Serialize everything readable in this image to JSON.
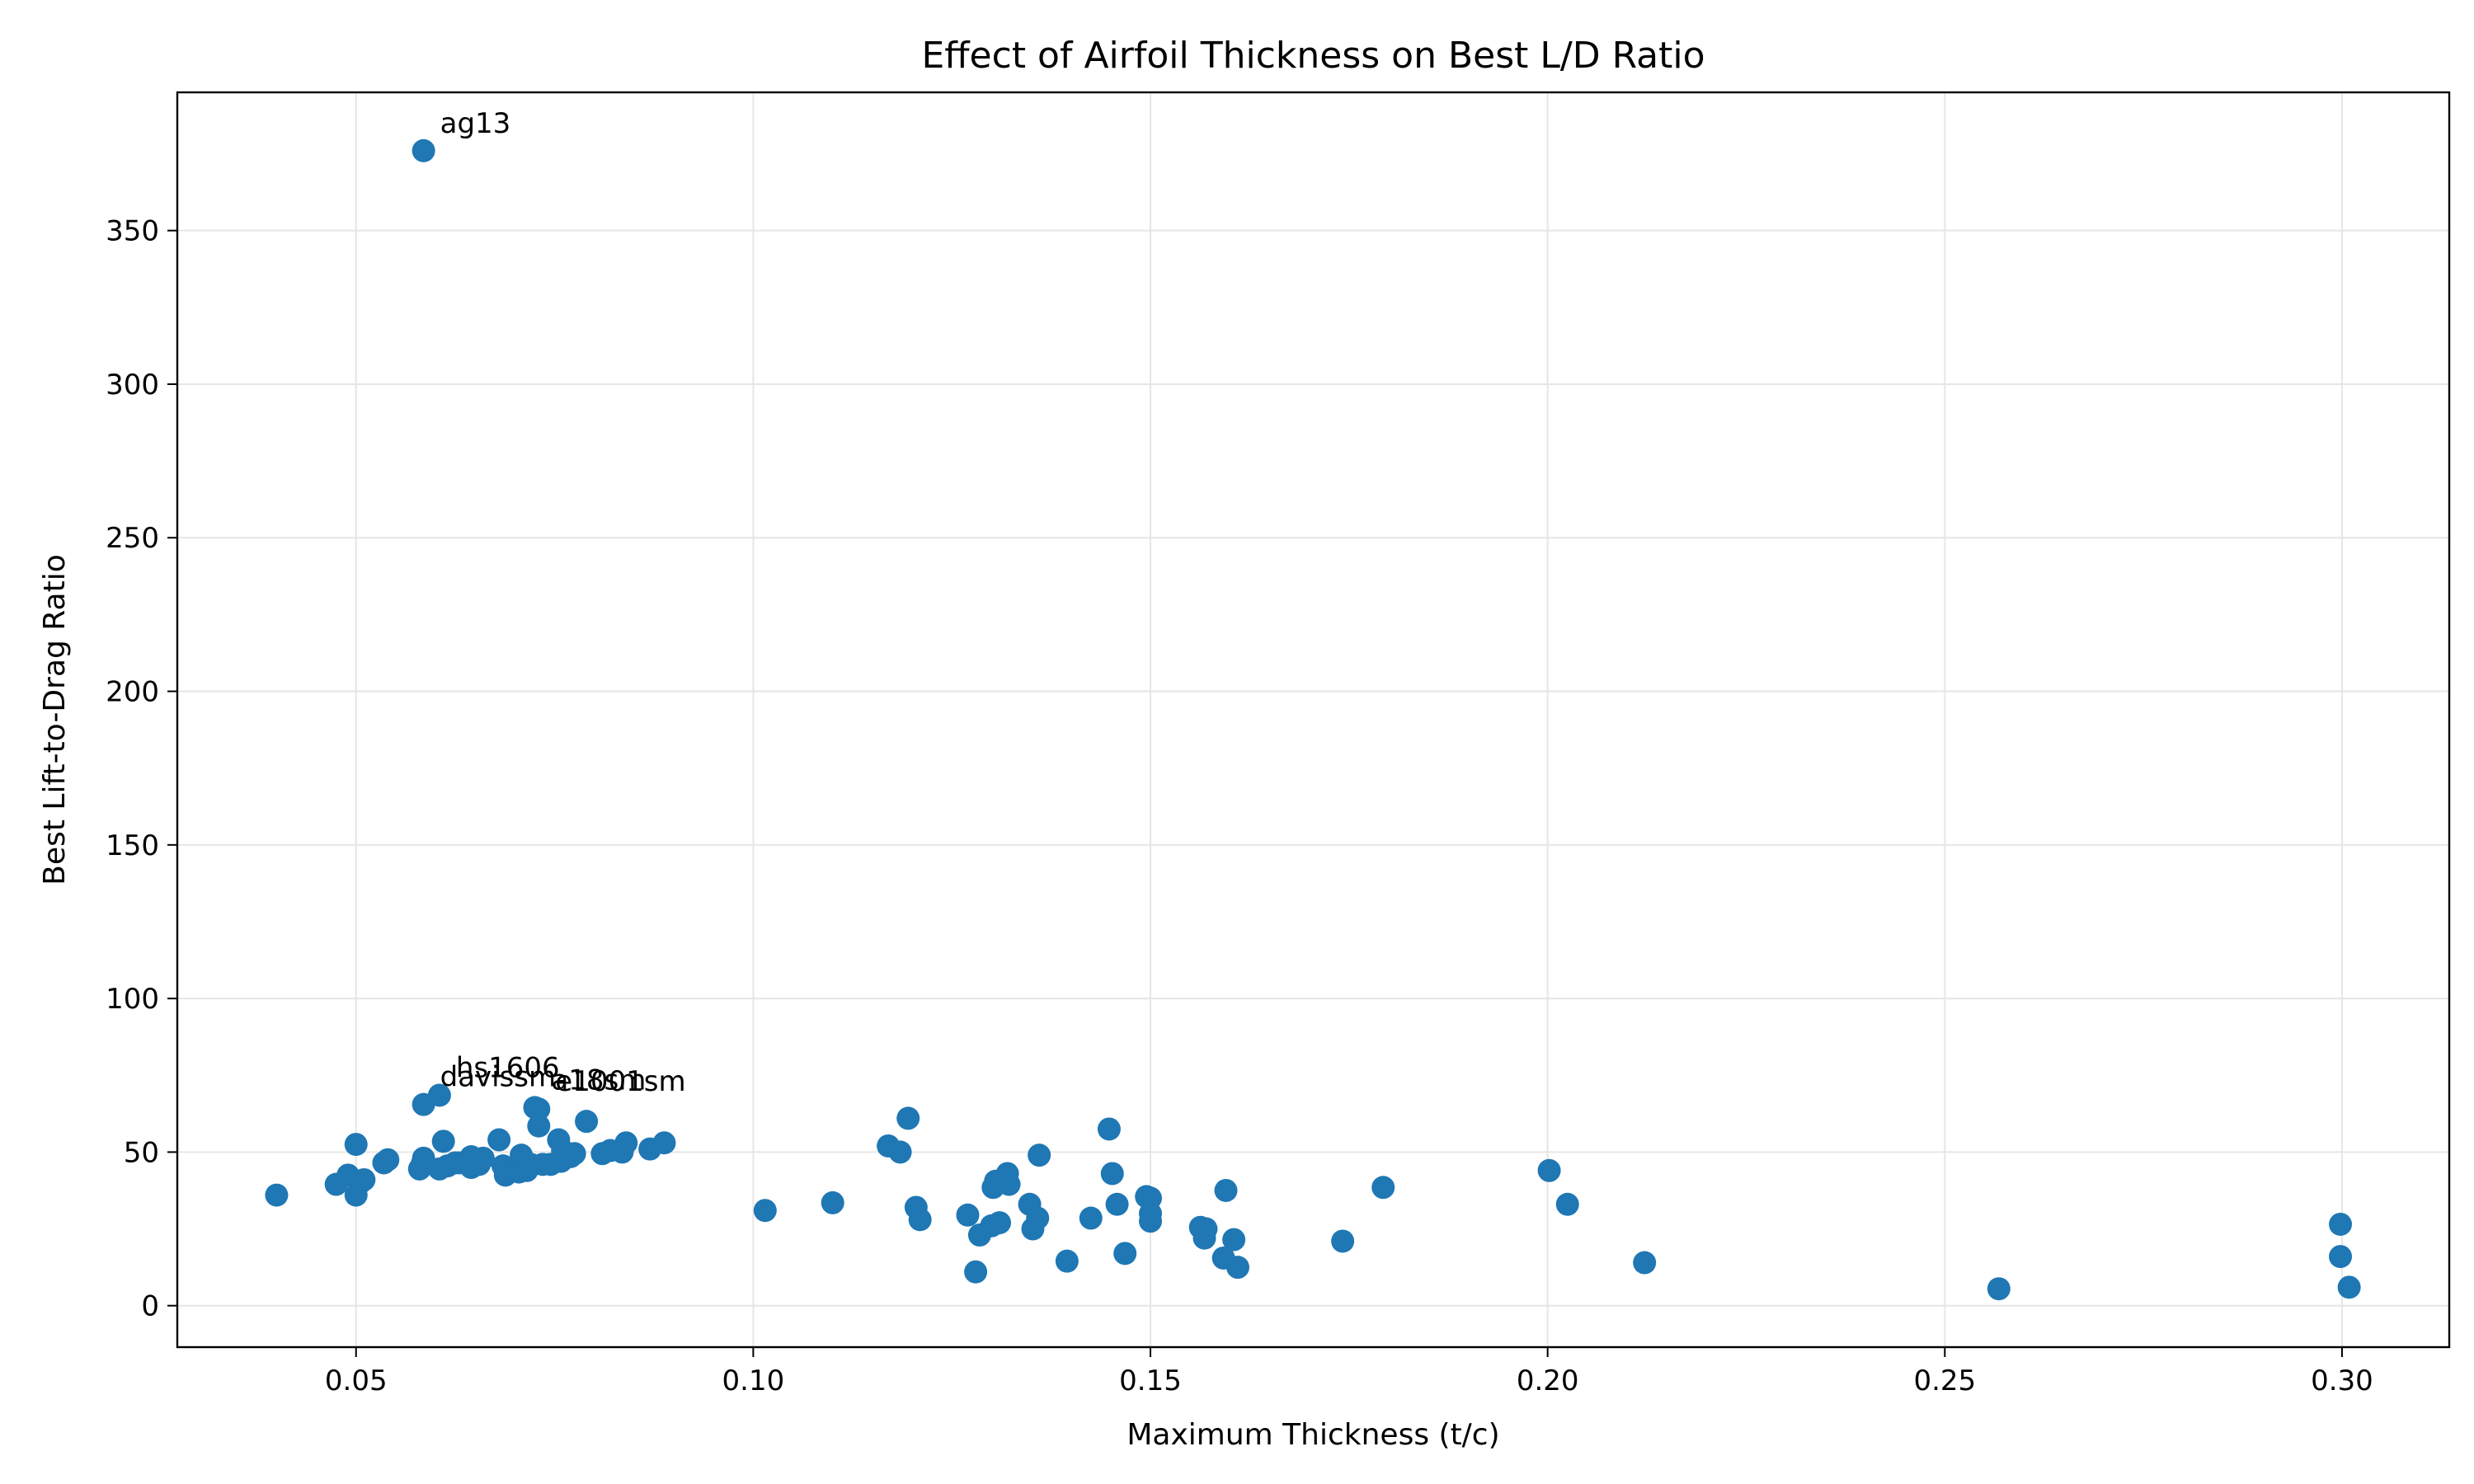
{
  "chart_data": {
    "type": "scatter",
    "title": "Effect of Airfoil Thickness on Best L/D Ratio",
    "xlabel": "Maximum Thickness (t/c)",
    "ylabel": "Best Lift-to-Drag Ratio",
    "xlim": [
      0.0275,
      0.3135
    ],
    "ylim": [
      -13.5,
      395
    ],
    "xticks": [
      0.05,
      0.1,
      0.15,
      0.2,
      0.25,
      0.3
    ],
    "xtick_labels": [
      "0.05",
      "0.10",
      "0.15",
      "0.20",
      "0.25",
      "0.30"
    ],
    "yticks": [
      0,
      50,
      100,
      150,
      200,
      250,
      300,
      350
    ],
    "ytick_labels": [
      "0",
      "50",
      "100",
      "150",
      "200",
      "250",
      "300",
      "350"
    ],
    "grid": true,
    "marker_color": "#1f77b4",
    "annotations": [
      {
        "text": "ag13",
        "x": 0.0585,
        "y": 376
      },
      {
        "text": "hs1606",
        "x": 0.0605,
        "y": 68.5
      },
      {
        "text": "davissm",
        "x": 0.0585,
        "y": 65.5
      },
      {
        "text": "e1001sm",
        "x": 0.073,
        "y": 64
      },
      {
        "text": "a18sm",
        "x": 0.0725,
        "y": 64.5
      }
    ],
    "points": [
      [
        0.04,
        36
      ],
      [
        0.0475,
        39.5
      ],
      [
        0.049,
        42.5
      ],
      [
        0.05,
        52.5
      ],
      [
        0.05,
        36
      ],
      [
        0.0505,
        40
      ],
      [
        0.051,
        41
      ],
      [
        0.0535,
        46.5
      ],
      [
        0.054,
        47.5
      ],
      [
        0.058,
        44.5
      ],
      [
        0.0583,
        46
      ],
      [
        0.0585,
        48
      ],
      [
        0.0585,
        376
      ],
      [
        0.0585,
        65.5
      ],
      [
        0.0605,
        68.5
      ],
      [
        0.0605,
        44.5
      ],
      [
        0.061,
        53.5
      ],
      [
        0.0615,
        45.5
      ],
      [
        0.0625,
        46.5
      ],
      [
        0.063,
        46.5
      ],
      [
        0.0645,
        45
      ],
      [
        0.0645,
        48.5
      ],
      [
        0.0655,
        46
      ],
      [
        0.066,
        48
      ],
      [
        0.068,
        54
      ],
      [
        0.0685,
        45.5
      ],
      [
        0.0688,
        42.5
      ],
      [
        0.0695,
        44
      ],
      [
        0.07,
        44
      ],
      [
        0.0705,
        43.5
      ],
      [
        0.0708,
        49
      ],
      [
        0.071,
        46.5
      ],
      [
        0.0715,
        44
      ],
      [
        0.072,
        46
      ],
      [
        0.0725,
        64.5
      ],
      [
        0.073,
        64
      ],
      [
        0.073,
        58.5
      ],
      [
        0.0735,
        46
      ],
      [
        0.0745,
        46
      ],
      [
        0.0755,
        54
      ],
      [
        0.0758,
        47
      ],
      [
        0.076,
        50.5
      ],
      [
        0.077,
        48.5
      ],
      [
        0.0775,
        49.5
      ],
      [
        0.079,
        60
      ],
      [
        0.081,
        49.5
      ],
      [
        0.082,
        50.5
      ],
      [
        0.0835,
        50
      ],
      [
        0.084,
        53
      ],
      [
        0.087,
        51
      ],
      [
        0.0888,
        53
      ],
      [
        0.1015,
        31
      ],
      [
        0.11,
        33.5
      ],
      [
        0.117,
        52
      ],
      [
        0.1185,
        50
      ],
      [
        0.1195,
        61
      ],
      [
        0.1205,
        32
      ],
      [
        0.121,
        28
      ],
      [
        0.127,
        29.5
      ],
      [
        0.128,
        11
      ],
      [
        0.1285,
        23
      ],
      [
        0.13,
        26
      ],
      [
        0.1302,
        38.5
      ],
      [
        0.1305,
        40.5
      ],
      [
        0.131,
        27
      ],
      [
        0.132,
        43
      ],
      [
        0.1322,
        39.5
      ],
      [
        0.1348,
        33
      ],
      [
        0.1352,
        25
      ],
      [
        0.1358,
        28.5
      ],
      [
        0.136,
        49
      ],
      [
        0.1395,
        14.5
      ],
      [
        0.1425,
        28.5
      ],
      [
        0.1448,
        57.5
      ],
      [
        0.1452,
        43
      ],
      [
        0.1458,
        33
      ],
      [
        0.1468,
        17
      ],
      [
        0.1495,
        35.5
      ],
      [
        0.15,
        35
      ],
      [
        0.15,
        30
      ],
      [
        0.15,
        27.5
      ],
      [
        0.1563,
        25.5
      ],
      [
        0.1568,
        22
      ],
      [
        0.157,
        25
      ],
      [
        0.1592,
        15.5
      ],
      [
        0.1595,
        37.5
      ],
      [
        0.1605,
        21.5
      ],
      [
        0.161,
        12.5
      ],
      [
        0.1742,
        21
      ],
      [
        0.1793,
        38.5
      ],
      [
        0.2002,
        44
      ],
      [
        0.2025,
        33
      ],
      [
        0.2122,
        14
      ],
      [
        0.2568,
        5.5
      ],
      [
        0.2998,
        26.5
      ],
      [
        0.2998,
        16
      ],
      [
        0.3009,
        6
      ]
    ]
  }
}
